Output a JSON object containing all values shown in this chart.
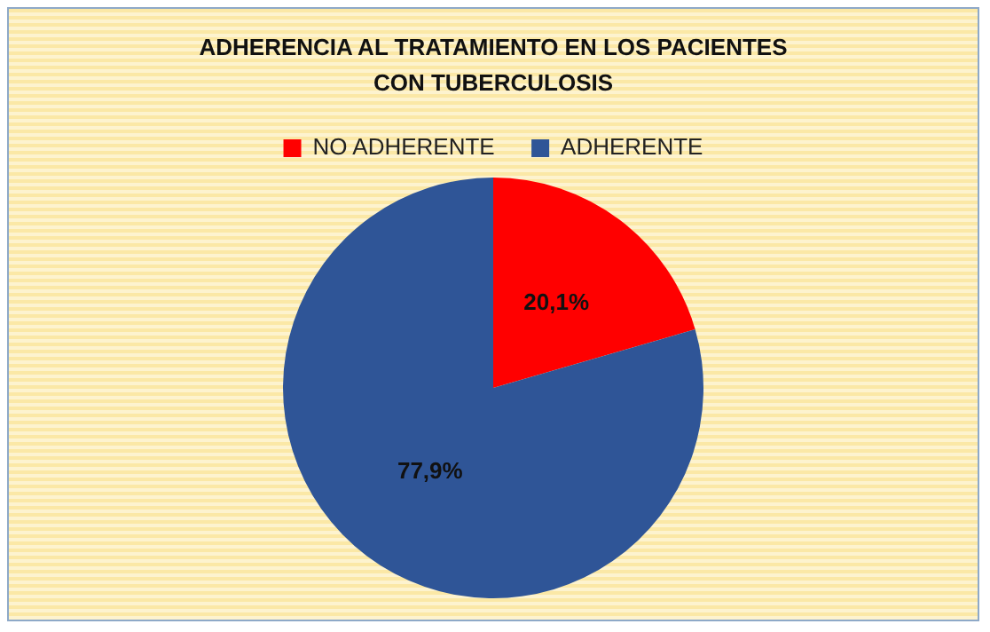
{
  "chart_data": {
    "type": "pie",
    "title": "ADHERENCIA AL TRATAMIENTO EN LOS PACIENTES CON TUBERCULOSIS",
    "categories": [
      "NO ADHERENTE",
      "ADHERENTE"
    ],
    "values": [
      20.1,
      77.9
    ],
    "colors": [
      "#ff0000",
      "#2f5597"
    ],
    "value_labels": [
      "20,1%",
      "77,9%"
    ],
    "legend": "top"
  }
}
